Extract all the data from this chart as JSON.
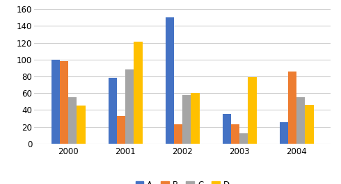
{
  "years": [
    2000,
    2001,
    2002,
    2003,
    2004
  ],
  "series": {
    "A": [
      100,
      78,
      150,
      35,
      25
    ],
    "B": [
      98,
      33,
      23,
      23,
      86
    ],
    "C": [
      55,
      88,
      58,
      12,
      55
    ],
    "D": [
      45,
      121,
      60,
      79,
      46
    ]
  },
  "colors": {
    "A": "#4472C4",
    "B": "#ED7D31",
    "C": "#A5A5A5",
    "D": "#FFC000"
  },
  "ylim": [
    0,
    160
  ],
  "yticks": [
    0,
    20,
    40,
    60,
    80,
    100,
    120,
    140,
    160
  ],
  "legend_labels": [
    "A",
    "B",
    "C",
    "D"
  ],
  "bar_width": 0.15,
  "group_width": 0.75,
  "background_color": "#ffffff",
  "grid_color": "#d0d0d0"
}
